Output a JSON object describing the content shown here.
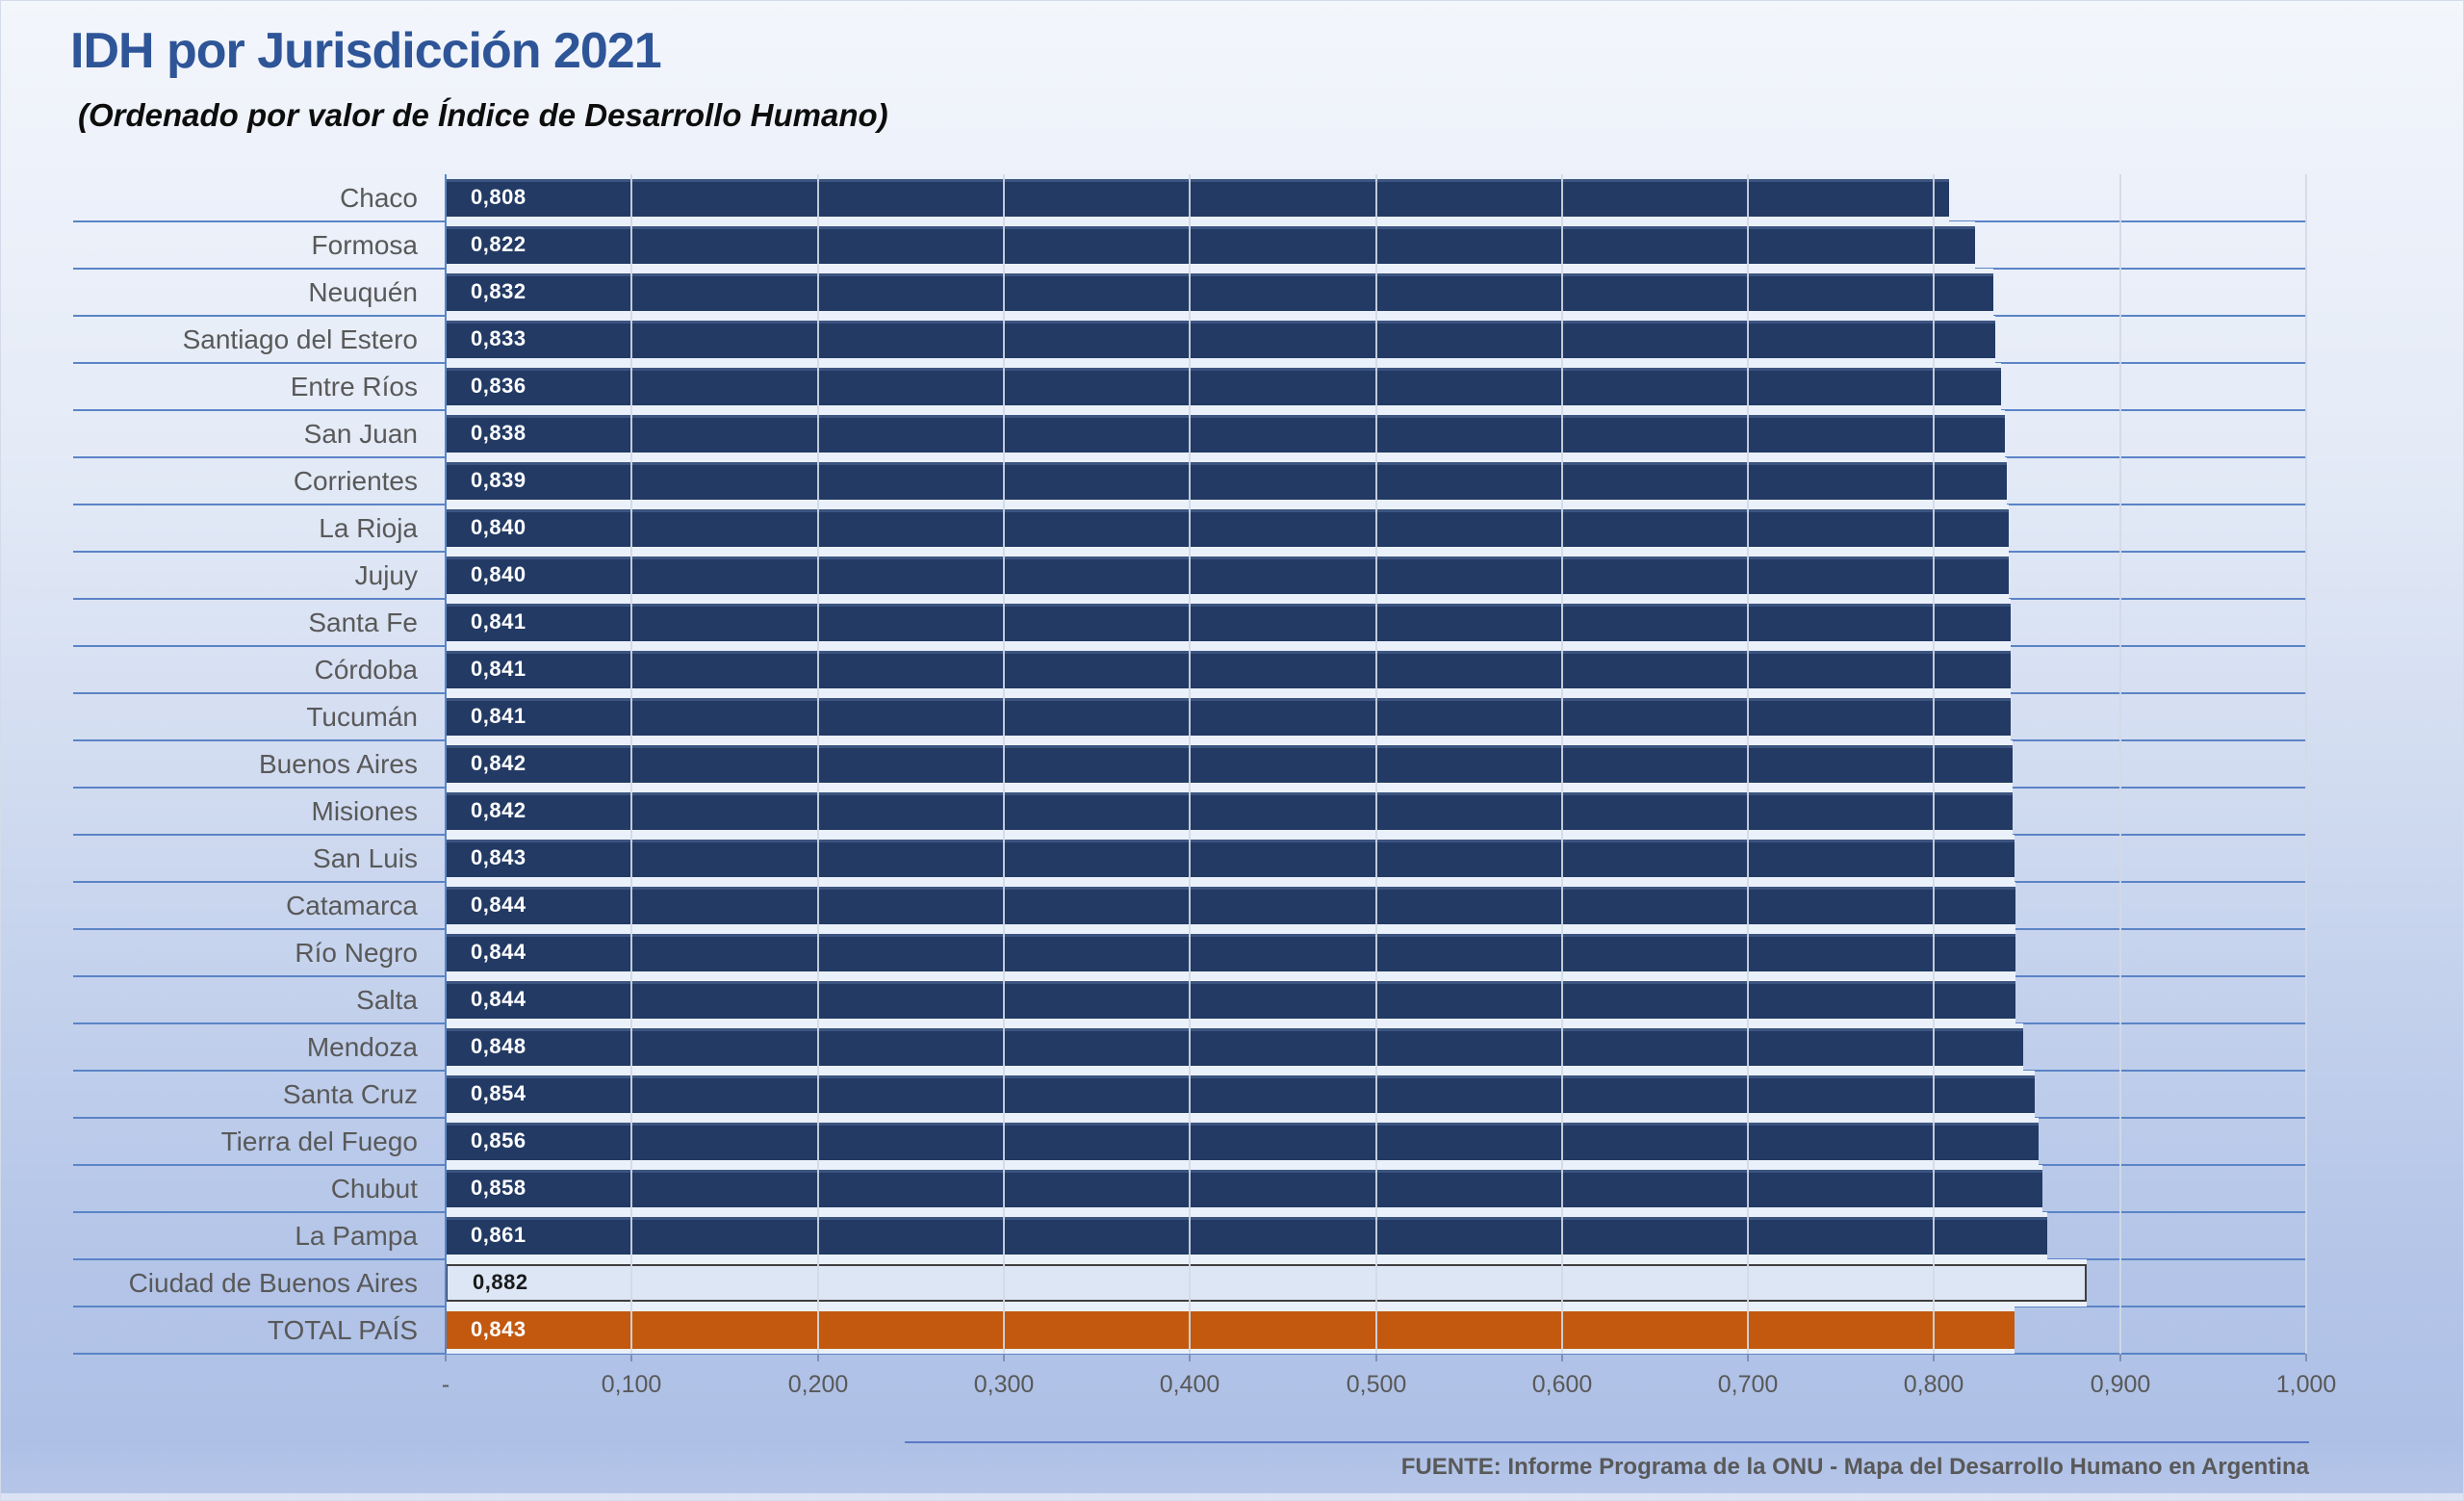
{
  "header": {
    "title": "IDH por Jurisdicción 2021",
    "subtitle": "(Ordenado por valor de Índice de Desarrollo Humano)"
  },
  "footer": {
    "source": "FUENTE: Informe Programa de la ONU - Mapa del Desarrollo Humano en Argentina"
  },
  "chart_data": {
    "type": "bar",
    "orientation": "horizontal",
    "title": "IDH por Jurisdicción 2021",
    "subtitle": "(Ordenado por valor de Índice de Desarrollo Humano)",
    "xlabel": "",
    "ylabel": "",
    "xlim": [
      0,
      1.0
    ],
    "x_tick_values": [
      0,
      0.1,
      0.2,
      0.3,
      0.4,
      0.5,
      0.6,
      0.7,
      0.8,
      0.9,
      1.0
    ],
    "x_tick_labels": [
      "-",
      "0,100",
      "0,200",
      "0,300",
      "0,400",
      "0,500",
      "0,600",
      "0,700",
      "0,800",
      "0,900",
      "1,000"
    ],
    "grid": "vertical-major",
    "legend": "none",
    "rows": [
      {
        "category": "Chaco",
        "value": 0.808,
        "label": "0,808",
        "style": "province"
      },
      {
        "category": "Formosa",
        "value": 0.822,
        "label": "0,822",
        "style": "province"
      },
      {
        "category": "Neuquén",
        "value": 0.832,
        "label": "0,832",
        "style": "province"
      },
      {
        "category": "Santiago del Estero",
        "value": 0.833,
        "label": "0,833",
        "style": "province"
      },
      {
        "category": "Entre Ríos",
        "value": 0.836,
        "label": "0,836",
        "style": "province"
      },
      {
        "category": "San Juan",
        "value": 0.838,
        "label": "0,838",
        "style": "province"
      },
      {
        "category": "Corrientes",
        "value": 0.839,
        "label": "0,839",
        "style": "province"
      },
      {
        "category": "La Rioja",
        "value": 0.84,
        "label": "0,840",
        "style": "province"
      },
      {
        "category": "Jujuy",
        "value": 0.84,
        "label": "0,840",
        "style": "province"
      },
      {
        "category": "Santa Fe",
        "value": 0.841,
        "label": "0,841",
        "style": "province"
      },
      {
        "category": "Córdoba",
        "value": 0.841,
        "label": "0,841",
        "style": "province"
      },
      {
        "category": "Tucumán",
        "value": 0.841,
        "label": "0,841",
        "style": "province"
      },
      {
        "category": "Buenos Aires",
        "value": 0.842,
        "label": "0,842",
        "style": "province"
      },
      {
        "category": "Misiones",
        "value": 0.842,
        "label": "0,842",
        "style": "province"
      },
      {
        "category": "San Luis",
        "value": 0.843,
        "label": "0,843",
        "style": "province"
      },
      {
        "category": "Catamarca",
        "value": 0.844,
        "label": "0,844",
        "style": "province"
      },
      {
        "category": "Río Negro",
        "value": 0.844,
        "label": "0,844",
        "style": "province"
      },
      {
        "category": "Salta",
        "value": 0.844,
        "label": "0,844",
        "style": "province"
      },
      {
        "category": "Mendoza",
        "value": 0.848,
        "label": "0,848",
        "style": "province"
      },
      {
        "category": "Santa Cruz",
        "value": 0.854,
        "label": "0,854",
        "style": "province"
      },
      {
        "category": "Tierra del Fuego",
        "value": 0.856,
        "label": "0,856",
        "style": "province"
      },
      {
        "category": "Chubut",
        "value": 0.858,
        "label": "0,858",
        "style": "province"
      },
      {
        "category": "La Pampa",
        "value": 0.861,
        "label": "0,861",
        "style": "province"
      },
      {
        "category": "Ciudad de Buenos Aires",
        "value": 0.882,
        "label": "0,882",
        "style": "highlight-light"
      },
      {
        "category": "TOTAL PAÍS",
        "value": 0.843,
        "label": "0,843",
        "style": "total-orange"
      }
    ],
    "colors": {
      "province_bar": "#223a64",
      "highlight_bar_fill": "#dce6f5",
      "highlight_bar_border": "#3f3f3f",
      "total_bar": "#c2590f",
      "value_text": "#ffffff",
      "highlight_value_text": "#1a1a1a",
      "category_text": "#595959",
      "axis_text": "#595959",
      "separator_line": "#5b84c6",
      "gridline": "#d3d9e5",
      "title_text": "#2e5597",
      "source_divider": "#5b79c4"
    }
  }
}
